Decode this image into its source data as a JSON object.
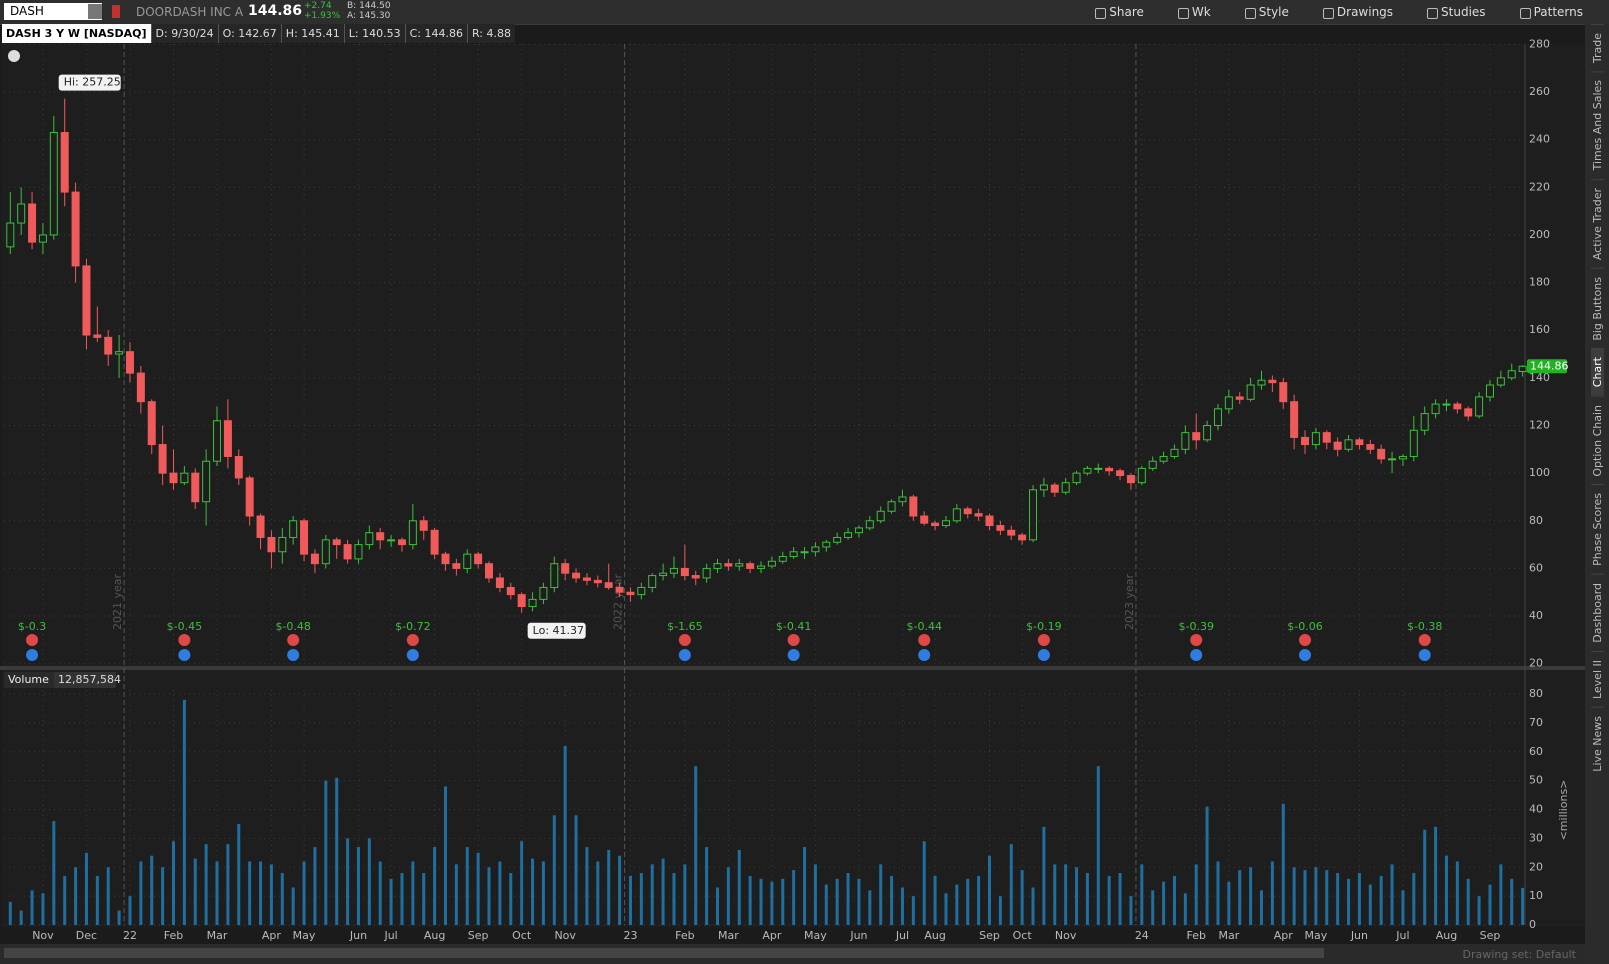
{
  "header": {
    "symbol": "DASH",
    "company": "DOORDASH INC A",
    "last": "144.86",
    "change": "+2.74",
    "change_pct": "+1.93%",
    "bid": "B: 144.50",
    "ask": "A: 145.30"
  },
  "toolbar": [
    "Share",
    "Wk",
    "Style",
    "Drawings",
    "Studies",
    "Patterns"
  ],
  "info": {
    "title": "DASH 3 Y W [NASDAQ]",
    "fields": [
      "D: 9/30/24",
      "O: 142.67",
      "H: 145.41",
      "L: 140.53",
      "C: 144.86",
      "R: 4.88"
    ]
  },
  "side_tabs": [
    "Trade",
    "Times And Sales",
    "Active Trader",
    "Big Buttons",
    "Chart",
    "Option Chain",
    "Phase Scores",
    "Dashboard",
    "Level II",
    "Live News"
  ],
  "footer": "Drawing set: Default",
  "chart_data": {
    "type": "candlestick",
    "up_color": "#3cc13c",
    "down_color": "#f05a5a",
    "volume_color": "#1f6fa0",
    "grid": true,
    "hi_label": "Hi: 257.25",
    "lo_label": "Lo: 41.37",
    "volume_title": "Volume",
    "volume_label": "12,857,584",
    "volume_unit": "<millions>",
    "ylim": [
      20,
      280
    ],
    "yticks": [
      20,
      40,
      60,
      80,
      100,
      120,
      140,
      160,
      180,
      200,
      220,
      240,
      260,
      280
    ],
    "vol_ylim": [
      0,
      80
    ],
    "vol_yticks": [
      0,
      10,
      20,
      30,
      40,
      50,
      60,
      70,
      80
    ],
    "categories": [
      null,
      null,
      null,
      "Nov",
      null,
      null,
      null,
      "Dec",
      null,
      null,
      null,
      "22",
      null,
      null,
      null,
      "Feb",
      null,
      null,
      null,
      "Mar",
      null,
      null,
      null,
      null,
      "Apr",
      null,
      null,
      "May",
      null,
      null,
      null,
      null,
      "Jun",
      null,
      null,
      "Jul",
      null,
      null,
      null,
      "Aug",
      null,
      null,
      null,
      "Sep",
      null,
      null,
      null,
      "Oct",
      null,
      null,
      null,
      "Nov",
      null,
      null,
      null,
      null,
      null,
      "23",
      null,
      null,
      null,
      null,
      "Feb",
      null,
      null,
      null,
      "Mar",
      null,
      null,
      null,
      "Apr",
      null,
      null,
      null,
      "May",
      null,
      null,
      null,
      "Jun",
      null,
      null,
      null,
      "Jul",
      null,
      null,
      "Aug",
      null,
      null,
      null,
      null,
      "Sep",
      null,
      null,
      "Oct",
      null,
      null,
      null,
      "Nov",
      null,
      null,
      null,
      null,
      null,
      null,
      "24",
      null,
      null,
      null,
      null,
      "Feb",
      null,
      null,
      "Mar",
      null,
      null,
      null,
      null,
      "Apr",
      null,
      null,
      "May",
      null,
      null,
      null,
      "Jun",
      null,
      null,
      null,
      "Jul",
      null,
      null,
      null,
      "Aug",
      null,
      null,
      null,
      "Sep",
      null,
      null,
      null
    ],
    "year_labels": [
      null,
      null,
      null,
      null,
      null,
      null,
      null,
      null,
      null,
      null,
      "2021 year",
      null,
      null,
      null,
      null,
      null,
      null,
      null,
      null,
      null,
      null,
      null,
      null,
      null,
      null,
      null,
      null,
      null,
      null,
      null,
      null,
      null,
      null,
      null,
      null,
      null,
      null,
      null,
      null,
      null,
      null,
      null,
      null,
      null,
      null,
      null,
      null,
      null,
      null,
      null,
      null,
      null,
      null,
      null,
      null,
      null,
      "2022 year",
      null,
      null,
      null,
      null,
      null,
      null,
      null,
      null,
      null,
      null,
      null,
      null,
      null,
      null,
      null,
      null,
      null,
      null,
      null,
      null,
      null,
      null,
      null,
      null,
      null,
      null,
      null,
      null,
      null,
      null,
      null,
      null,
      null,
      null,
      null,
      null,
      null,
      null,
      null,
      null,
      null,
      null,
      null,
      null,
      null,
      null,
      "2023 year",
      null,
      null,
      null,
      null,
      null,
      null,
      null,
      null,
      null,
      null,
      null,
      null,
      null,
      null,
      null,
      null,
      null,
      null,
      null,
      null,
      null,
      null,
      null,
      null,
      null,
      null,
      null,
      null,
      null,
      null,
      null,
      null,
      null,
      null,
      null,
      null
    ],
    "earnings_labels": [
      null,
      null,
      "$-0.3",
      null,
      null,
      null,
      null,
      null,
      null,
      null,
      null,
      null,
      null,
      null,
      null,
      null,
      "$-0.45",
      null,
      null,
      null,
      null,
      null,
      null,
      null,
      null,
      null,
      "$-0.48",
      null,
      null,
      null,
      null,
      null,
      null,
      null,
      null,
      null,
      null,
      "$-0.72",
      null,
      null,
      null,
      null,
      null,
      null,
      null,
      null,
      null,
      null,
      null,
      null,
      null,
      null,
      null,
      null,
      null,
      null,
      null,
      null,
      null,
      null,
      null,
      null,
      "$-1.65",
      null,
      null,
      null,
      null,
      null,
      null,
      null,
      null,
      null,
      "$-0.41",
      null,
      null,
      null,
      null,
      null,
      null,
      null,
      null,
      null,
      null,
      null,
      "$-0.44",
      null,
      null,
      null,
      null,
      null,
      null,
      null,
      null,
      null,
      null,
      "$-0.19",
      null,
      null,
      null,
      null,
      null,
      null,
      null,
      null,
      null,
      null,
      null,
      null,
      null,
      "$-0.39",
      null,
      null,
      null,
      null,
      null,
      null,
      null,
      null,
      null,
      "$-0.06",
      null,
      null,
      null,
      null,
      null,
      null,
      null,
      null,
      null,
      null,
      "$-0.38",
      null,
      null,
      null,
      null,
      null,
      null,
      null,
      null,
      null
    ],
    "candles": [
      [
        195,
        218,
        192,
        205
      ],
      [
        205,
        220,
        200,
        213
      ],
      [
        213,
        218,
        194,
        197
      ],
      [
        197,
        205,
        192,
        200
      ],
      [
        200,
        250,
        198,
        243
      ],
      [
        243,
        257.25,
        212,
        218
      ],
      [
        218,
        222,
        180,
        187
      ],
      [
        187,
        190,
        152,
        158
      ],
      [
        158,
        170,
        155,
        157
      ],
      [
        157,
        160,
        145,
        150
      ],
      [
        150,
        158,
        140,
        151
      ],
      [
        151,
        155,
        138,
        142
      ],
      [
        142,
        145,
        125,
        130
      ],
      [
        130,
        131,
        108,
        112
      ],
      [
        112,
        120,
        95,
        100
      ],
      [
        100,
        110,
        93,
        96
      ],
      [
        96,
        103,
        95,
        100
      ],
      [
        100,
        102,
        85,
        88
      ],
      [
        88,
        110,
        78,
        105
      ],
      [
        105,
        128,
        103,
        122
      ],
      [
        122,
        131,
        102,
        107
      ],
      [
        107,
        110,
        95,
        98
      ],
      [
        98,
        99,
        78,
        82
      ],
      [
        82,
        83,
        68,
        73
      ],
      [
        73,
        76,
        60,
        67
      ],
      [
        67,
        77,
        62,
        73
      ],
      [
        73,
        82,
        70,
        80
      ],
      [
        80,
        81,
        63,
        66
      ],
      [
        66,
        68,
        58,
        62
      ],
      [
        62,
        74,
        60,
        72
      ],
      [
        72,
        73,
        64,
        70
      ],
      [
        70,
        72,
        62,
        64
      ],
      [
        64,
        72,
        62,
        70
      ],
      [
        70,
        78,
        68,
        75
      ],
      [
        75,
        77,
        68,
        72
      ],
      [
        72,
        74,
        69,
        72
      ],
      [
        72,
        73,
        67,
        70
      ],
      [
        70,
        87,
        68,
        80
      ],
      [
        80,
        82,
        72,
        76
      ],
      [
        76,
        77,
        64,
        66
      ],
      [
        66,
        67,
        59,
        62
      ],
      [
        62,
        64,
        57,
        60
      ],
      [
        60,
        68,
        58,
        66
      ],
      [
        66,
        67,
        60,
        62
      ],
      [
        62,
        63,
        54,
        56
      ],
      [
        56,
        58,
        50,
        52
      ],
      [
        52,
        54,
        47,
        49
      ],
      [
        49,
        50,
        41.37,
        44
      ],
      [
        44,
        50,
        42,
        47
      ],
      [
        47,
        54,
        45,
        52
      ],
      [
        52,
        65,
        50,
        62
      ],
      [
        62,
        64,
        55,
        58
      ],
      [
        58,
        60,
        54,
        56
      ],
      [
        56,
        58,
        53,
        55
      ],
      [
        55,
        57,
        52,
        54
      ],
      [
        54,
        62,
        51,
        52
      ],
      [
        52,
        54,
        48,
        50
      ],
      [
        50,
        52,
        46,
        49
      ],
      [
        49,
        54,
        47,
        52
      ],
      [
        52,
        58,
        50,
        57
      ],
      [
        57,
        62,
        55,
        58
      ],
      [
        58,
        65,
        56,
        60
      ],
      [
        60,
        70,
        55,
        57
      ],
      [
        57,
        59,
        53,
        56
      ],
      [
        56,
        62,
        54,
        60
      ],
      [
        60,
        64,
        58,
        62
      ],
      [
        62,
        64,
        59,
        61
      ],
      [
        61,
        64,
        59,
        62
      ],
      [
        62,
        63,
        58,
        60
      ],
      [
        60,
        63,
        58,
        61
      ],
      [
        61,
        65,
        60,
        63
      ],
      [
        63,
        67,
        62,
        65
      ],
      [
        65,
        69,
        64,
        67
      ],
      [
        67,
        69,
        64,
        67
      ],
      [
        67,
        71,
        65,
        69
      ],
      [
        69,
        72,
        67,
        71
      ],
      [
        71,
        75,
        70,
        73
      ],
      [
        73,
        77,
        72,
        75
      ],
      [
        75,
        78,
        73,
        77
      ],
      [
        77,
        82,
        76,
        80
      ],
      [
        80,
        86,
        79,
        84
      ],
      [
        84,
        89,
        83,
        88
      ],
      [
        88,
        93,
        86,
        90
      ],
      [
        90,
        91,
        80,
        82
      ],
      [
        82,
        84,
        78,
        79
      ],
      [
        79,
        80,
        76,
        78
      ],
      [
        78,
        82,
        77,
        80
      ],
      [
        80,
        87,
        79,
        85
      ],
      [
        85,
        86,
        81,
        83
      ],
      [
        83,
        85,
        80,
        82
      ],
      [
        82,
        83,
        76,
        78
      ],
      [
        78,
        80,
        74,
        76
      ],
      [
        76,
        78,
        72,
        74
      ],
      [
        74,
        75,
        70,
        72
      ],
      [
        72,
        95,
        71,
        93
      ],
      [
        93,
        98,
        90,
        95
      ],
      [
        95,
        96,
        90,
        92
      ],
      [
        92,
        98,
        91,
        96
      ],
      [
        96,
        101,
        95,
        100
      ],
      [
        100,
        103,
        99,
        102
      ],
      [
        102,
        104,
        100,
        102
      ],
      [
        102,
        103,
        99,
        101
      ],
      [
        101,
        102,
        97,
        99
      ],
      [
        99,
        100,
        93,
        96
      ],
      [
        96,
        103,
        95,
        102
      ],
      [
        102,
        107,
        101,
        105
      ],
      [
        105,
        109,
        104,
        107
      ],
      [
        107,
        112,
        106,
        110
      ],
      [
        110,
        120,
        108,
        117
      ],
      [
        117,
        125,
        110,
        114
      ],
      [
        114,
        122,
        113,
        120
      ],
      [
        120,
        129,
        118,
        127
      ],
      [
        127,
        135,
        125,
        132
      ],
      [
        132,
        134,
        129,
        131
      ],
      [
        131,
        140,
        130,
        137
      ],
      [
        137,
        143,
        135,
        139
      ],
      [
        139,
        141,
        134,
        138
      ],
      [
        138,
        140,
        127,
        130
      ],
      [
        130,
        133,
        110,
        115
      ],
      [
        115,
        118,
        108,
        112
      ],
      [
        112,
        119,
        110,
        117
      ],
      [
        117,
        118,
        110,
        113
      ],
      [
        113,
        115,
        107,
        110
      ],
      [
        110,
        116,
        109,
        114
      ],
      [
        114,
        115,
        110,
        112
      ],
      [
        112,
        114,
        108,
        110
      ],
      [
        110,
        112,
        104,
        106
      ],
      [
        106,
        109,
        100,
        106
      ],
      [
        106,
        108,
        103,
        107
      ],
      [
        107,
        124,
        105,
        118
      ],
      [
        118,
        128,
        116,
        125
      ],
      [
        125,
        131,
        123,
        129
      ],
      [
        129,
        131,
        126,
        129
      ],
      [
        129,
        130,
        125,
        127
      ],
      [
        127,
        128,
        122,
        124
      ],
      [
        124,
        134,
        123,
        132
      ],
      [
        132,
        139,
        130,
        137
      ],
      [
        137,
        143,
        136,
        140
      ],
      [
        140,
        146,
        139,
        143
      ],
      [
        142.67,
        145.41,
        140.53,
        144.86
      ]
    ],
    "volume": [
      8,
      5,
      12,
      11,
      36,
      17,
      20,
      25,
      17,
      20,
      5,
      10,
      22,
      24,
      20,
      29,
      78,
      23,
      28,
      22,
      28,
      35,
      22,
      22,
      21,
      18,
      13,
      22,
      27,
      50,
      51,
      30,
      27,
      30,
      22,
      16,
      18,
      22,
      18,
      27,
      48,
      21,
      27,
      25,
      20,
      22,
      18,
      29,
      23,
      22,
      38,
      62,
      38,
      27,
      22,
      26,
      24,
      17,
      18,
      21,
      23,
      18,
      21,
      55,
      27,
      13,
      20,
      26,
      17,
      16,
      15,
      16,
      19,
      27,
      21,
      14,
      16,
      18,
      16,
      12,
      21,
      17,
      13,
      10,
      29,
      17,
      11,
      14,
      16,
      17,
      24,
      10,
      28,
      19,
      13,
      34,
      21,
      21,
      20,
      18,
      55,
      17,
      18,
      10,
      21,
      12,
      15,
      17,
      11,
      21,
      41,
      22,
      15,
      19,
      20,
      12,
      22,
      42,
      20,
      19,
      20,
      19,
      18,
      16,
      18,
      14,
      17,
      21,
      12,
      18,
      33,
      34,
      24,
      22,
      16,
      10,
      14,
      21,
      16,
      12.857584
    ]
  }
}
